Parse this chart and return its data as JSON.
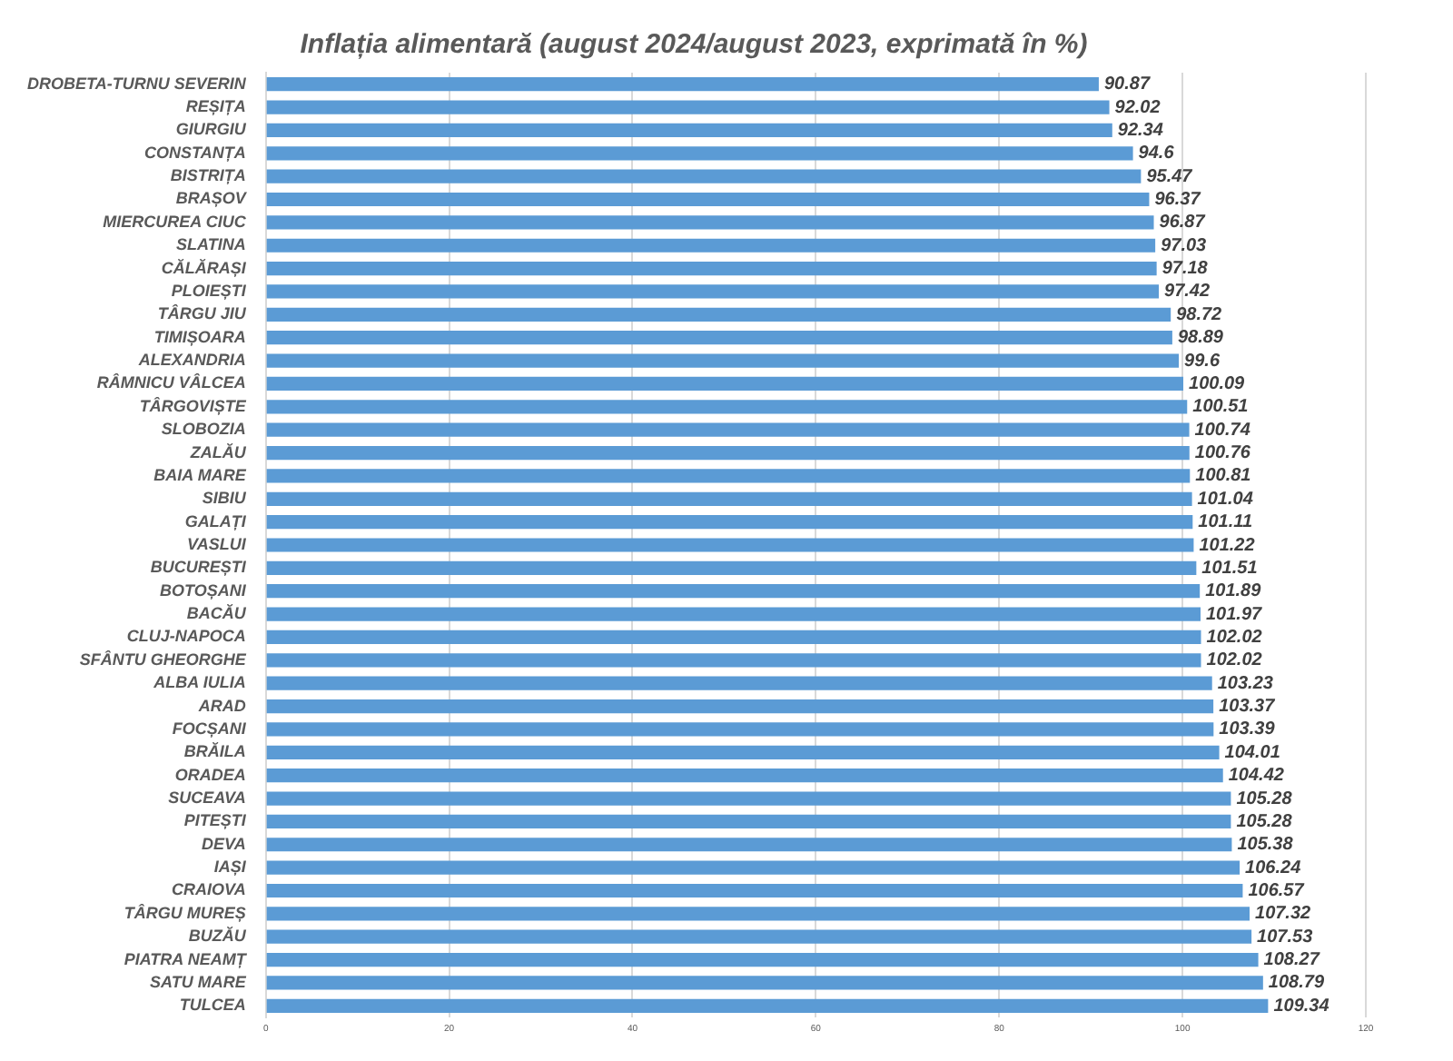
{
  "chart_data": {
    "type": "bar",
    "orientation": "horizontal",
    "title": "Inflația alimentară (august 2024/august 2023, exprimată în %)",
    "categories": [
      "DROBETA-TURNU SEVERIN",
      "REȘIȚA",
      "GIURGIU",
      "CONSTANȚA",
      "BISTRIȚA",
      "BRAȘOV",
      "MIERCUREA CIUC",
      "SLATINA",
      "CĂLĂRAȘI",
      "PLOIEȘTI",
      "TÂRGU JIU",
      "TIMIȘOARA",
      "ALEXANDRIA",
      "RÂMNICU VÂLCEA",
      "TÂRGOVIȘTE",
      "SLOBOZIA",
      "ZALĂU",
      "BAIA MARE",
      "SIBIU",
      "GALAȚI",
      "VASLUI",
      "BUCUREȘTI",
      "BOTOȘANI",
      "BACĂU",
      "CLUJ-NAPOCA",
      "SFÂNTU GHEORGHE",
      "ALBA IULIA",
      "ARAD",
      "FOCȘANI",
      "BRĂILA",
      "ORADEA",
      "SUCEAVA",
      "PITEȘTI",
      "DEVA",
      "IAȘI",
      "CRAIOVA",
      "TÂRGU MUREȘ",
      "BUZĂU",
      "PIATRA NEAMȚ",
      "SATU MARE",
      "TULCEA"
    ],
    "values": [
      90.87,
      92.02,
      92.34,
      94.6,
      95.47,
      96.37,
      96.87,
      97.03,
      97.18,
      97.42,
      98.72,
      98.89,
      99.6,
      100.09,
      100.51,
      100.74,
      100.76,
      100.81,
      101.04,
      101.11,
      101.22,
      101.51,
      101.89,
      101.97,
      102.02,
      102.02,
      103.23,
      103.37,
      103.39,
      104.01,
      104.42,
      105.28,
      105.28,
      105.38,
      106.24,
      106.57,
      107.32,
      107.53,
      108.27,
      108.79,
      109.34
    ],
    "color": "#5b9bd5",
    "xlim": [
      0,
      120
    ],
    "xticks": [
      0,
      20,
      40,
      60,
      80,
      100,
      120
    ],
    "grid": "x",
    "data_labels": true
  }
}
